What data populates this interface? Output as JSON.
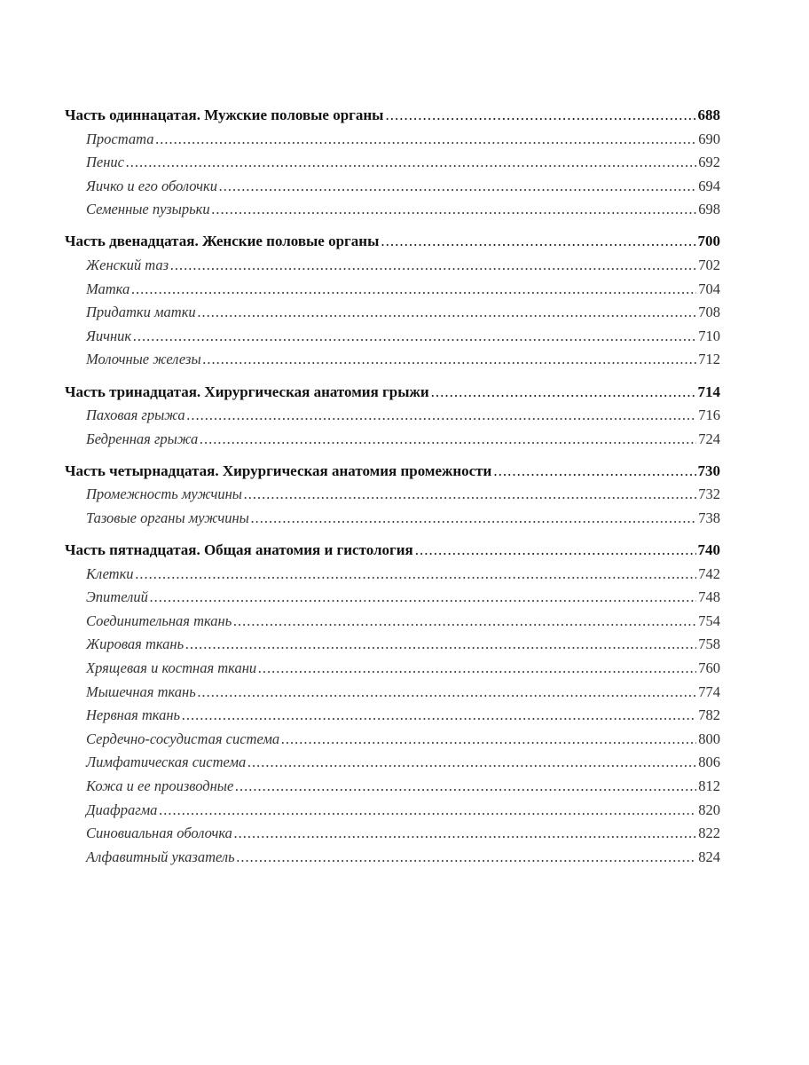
{
  "sections": [
    {
      "title": "Часть одиннацатая. Мужские половые органы",
      "page": "688",
      "items": [
        {
          "title": "Простата",
          "page": "690"
        },
        {
          "title": "Пенис",
          "page": "692"
        },
        {
          "title": "Яичко и его оболочки",
          "page": "694"
        },
        {
          "title": "Семенные пузырьки",
          "page": "698"
        }
      ]
    },
    {
      "title": "Часть двенадцатая. Женские половые органы",
      "page": "700",
      "items": [
        {
          "title": "Женский таз",
          "page": "702"
        },
        {
          "title": "Матка",
          "page": "704"
        },
        {
          "title": "Придатки матки",
          "page": "708"
        },
        {
          "title": "Яичник",
          "page": "710"
        },
        {
          "title": "Молочные железы",
          "page": "712"
        }
      ]
    },
    {
      "title": "Часть тринадцатая. Хирургическая анатомия грыжи",
      "page": "714",
      "items": [
        {
          "title": "Паховая грыжа",
          "page": "716"
        },
        {
          "title": "Бедренная грыжа",
          "page": "724"
        }
      ]
    },
    {
      "title": "Часть четырнадцатая. Хирургическая анатомия промежности",
      "page": "730",
      "items": [
        {
          "title": "Промежность мужчины",
          "page": "732"
        },
        {
          "title": "Тазовые органы мужчины",
          "page": "738"
        }
      ]
    },
    {
      "title": "Часть пятнадцатая. Общая анатомия и гистология",
      "page": "740",
      "items": [
        {
          "title": "Клетки",
          "page": "742"
        },
        {
          "title": "Эпителий",
          "page": "748"
        },
        {
          "title": "Соединительная ткань",
          "page": "754"
        },
        {
          "title": "Жировая ткань",
          "page": "758"
        },
        {
          "title": "Хрящевая и костная ткани",
          "page": "760"
        },
        {
          "title": "Мышечная ткань",
          "page": "774"
        },
        {
          "title": "Нервная ткань",
          "page": "782"
        },
        {
          "title": "Сердечно-сосудистая система",
          "page": "800"
        },
        {
          "title": "Лимфатическая система",
          "page": "806"
        },
        {
          "title": "Кожа и ее производные",
          "page": "812"
        },
        {
          "title": "Диафрагма",
          "page": "820"
        },
        {
          "title": "Синовиальная оболочка",
          "page": "822"
        },
        {
          "title": "Алфавитный указатель",
          "page": "824"
        }
      ]
    }
  ]
}
